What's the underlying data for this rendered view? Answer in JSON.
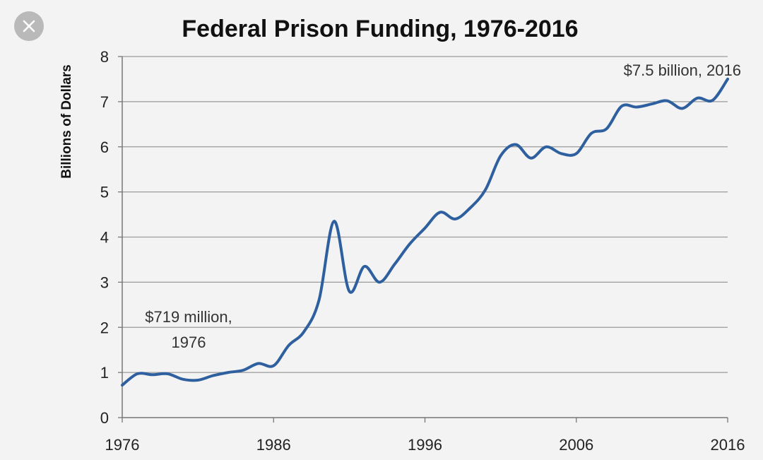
{
  "viewer": {
    "close_icon": "close-icon",
    "close_button_color": "#b9b9b9"
  },
  "chart_data": {
    "type": "line",
    "title": "Federal Prison Funding, 1976-2016",
    "xlabel": "",
    "ylabel": "Billions of Dollars",
    "xlim": [
      1976,
      2016
    ],
    "ylim": [
      0,
      8
    ],
    "xticks": [
      1976,
      1986,
      1996,
      2006,
      2016
    ],
    "yticks": [
      0,
      1,
      2,
      3,
      4,
      5,
      6,
      7,
      8
    ],
    "grid": "horizontal",
    "legend": "none",
    "line_color": "#2e5f9e",
    "series": [
      {
        "x": [
          1976,
          1977,
          1978,
          1979,
          1980,
          1981,
          1982,
          1983,
          1984,
          1985,
          1986,
          1987,
          1988,
          1989,
          1990,
          1991,
          1992,
          1993,
          1994,
          1995,
          1996,
          1997,
          1998,
          1999,
          2000,
          2001,
          2002,
          2003,
          2004,
          2005,
          2006,
          2007,
          2008,
          2009,
          2010,
          2011,
          2012,
          2013,
          2014,
          2015,
          2016
        ],
        "values": [
          0.719,
          0.97,
          0.95,
          0.97,
          0.85,
          0.83,
          0.93,
          1.0,
          1.05,
          1.2,
          1.15,
          1.6,
          1.9,
          2.6,
          4.35,
          2.8,
          3.35,
          3.0,
          3.4,
          3.85,
          4.2,
          4.55,
          4.4,
          4.65,
          5.05,
          5.8,
          6.05,
          5.75,
          6.0,
          5.85,
          5.85,
          6.3,
          6.4,
          6.9,
          6.88,
          6.95,
          7.02,
          6.85,
          7.08,
          7.03,
          7.5
        ]
      }
    ],
    "annotations": [
      {
        "text": "$719 million,",
        "line2": "1976"
      },
      {
        "text": "$7.5 billion, 2016"
      }
    ]
  }
}
